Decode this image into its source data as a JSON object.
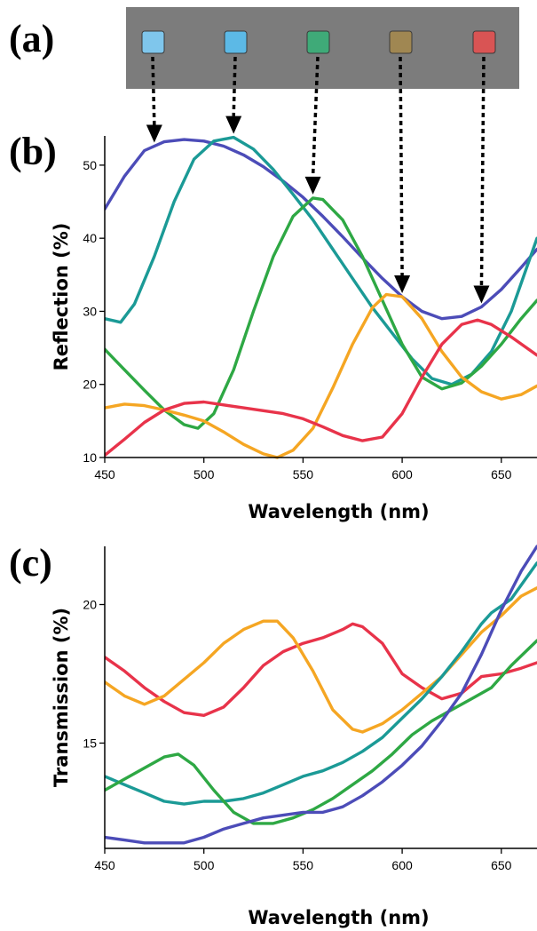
{
  "panel_labels": {
    "a": "(a)",
    "b": "(b)",
    "c": "(c)"
  },
  "photo": {
    "background": "#7c7c7c",
    "swatches": [
      {
        "color": "#7fc6ec",
        "arrow_to_wavelength": 475
      },
      {
        "color": "#5cb9e6",
        "arrow_to_wavelength": 515
      },
      {
        "color": "#3faa78",
        "arrow_to_wavelength": 555
      },
      {
        "color": "#a08752",
        "arrow_to_wavelength": 600
      },
      {
        "color": "#d95454",
        "arrow_to_wavelength": 640
      }
    ]
  },
  "chart_data": [
    {
      "id": "b",
      "type": "line",
      "xlabel": "Wavelength (nm)",
      "ylabel": "Reflection (%)",
      "xlim": [
        450,
        668
      ],
      "ylim": [
        10,
        54
      ],
      "xticks": [
        450,
        500,
        550,
        600,
        650
      ],
      "yticks": [
        10,
        20,
        30,
        40,
        50
      ],
      "series": [
        {
          "color": "#4c4cb8",
          "points": [
            [
              450,
              44
            ],
            [
              460,
              48.5
            ],
            [
              470,
              52
            ],
            [
              480,
              53.2
            ],
            [
              490,
              53.5
            ],
            [
              500,
              53.3
            ],
            [
              510,
              52.6
            ],
            [
              520,
              51.4
            ],
            [
              530,
              49.8
            ],
            [
              540,
              47.8
            ],
            [
              550,
              45.6
            ],
            [
              560,
              43
            ],
            [
              570,
              40.2
            ],
            [
              580,
              37.3
            ],
            [
              590,
              34.5
            ],
            [
              600,
              32
            ],
            [
              610,
              30
            ],
            [
              620,
              29
            ],
            [
              630,
              29.3
            ],
            [
              640,
              30.6
            ],
            [
              650,
              33
            ],
            [
              660,
              36
            ],
            [
              668,
              38.5
            ]
          ]
        },
        {
          "color": "#1b9a96",
          "points": [
            [
              450,
              29
            ],
            [
              458,
              28.5
            ],
            [
              465,
              31
            ],
            [
              475,
              37.5
            ],
            [
              485,
              45
            ],
            [
              495,
              50.8
            ],
            [
              505,
              53.3
            ],
            [
              515,
              53.8
            ],
            [
              525,
              52.2
            ],
            [
              535,
              49.4
            ],
            [
              545,
              46
            ],
            [
              555,
              42.5
            ],
            [
              565,
              38.5
            ],
            [
              575,
              34.5
            ],
            [
              585,
              30.5
            ],
            [
              595,
              27
            ],
            [
              605,
              23.5
            ],
            [
              615,
              20.8
            ],
            [
              625,
              20
            ],
            [
              635,
              21.4
            ],
            [
              645,
              24.5
            ],
            [
              655,
              30
            ],
            [
              668,
              40
            ]
          ]
        },
        {
          "color": "#2ea844",
          "points": [
            [
              450,
              24.8
            ],
            [
              460,
              22
            ],
            [
              470,
              19.2
            ],
            [
              480,
              16.5
            ],
            [
              490,
              14.5
            ],
            [
              497,
              14
            ],
            [
              505,
              16
            ],
            [
              515,
              22
            ],
            [
              525,
              30
            ],
            [
              535,
              37.5
            ],
            [
              545,
              43
            ],
            [
              555,
              45.5
            ],
            [
              560,
              45.3
            ],
            [
              570,
              42.5
            ],
            [
              580,
              37.5
            ],
            [
              590,
              31.5
            ],
            [
              600,
              25.5
            ],
            [
              610,
              21
            ],
            [
              620,
              19.4
            ],
            [
              630,
              20.2
            ],
            [
              640,
              22.5
            ],
            [
              650,
              25.5
            ],
            [
              660,
              29
            ],
            [
              668,
              31.5
            ]
          ]
        },
        {
          "color": "#f5a623",
          "points": [
            [
              450,
              16.8
            ],
            [
              460,
              17.3
            ],
            [
              470,
              17.1
            ],
            [
              480,
              16.5
            ],
            [
              490,
              15.8
            ],
            [
              500,
              15
            ],
            [
              510,
              13.5
            ],
            [
              520,
              11.8
            ],
            [
              530,
              10.5
            ],
            [
              537,
              10
            ],
            [
              545,
              11
            ],
            [
              555,
              14
            ],
            [
              565,
              19.5
            ],
            [
              575,
              25.5
            ],
            [
              585,
              30.5
            ],
            [
              592,
              32.3
            ],
            [
              600,
              32
            ],
            [
              610,
              29
            ],
            [
              620,
              24.5
            ],
            [
              630,
              21
            ],
            [
              640,
              19
            ],
            [
              650,
              18
            ],
            [
              660,
              18.6
            ],
            [
              668,
              19.8
            ]
          ]
        },
        {
          "color": "#e8334a",
          "points": [
            [
              450,
              10.3
            ],
            [
              460,
              12.5
            ],
            [
              470,
              14.8
            ],
            [
              480,
              16.5
            ],
            [
              490,
              17.4
            ],
            [
              500,
              17.6
            ],
            [
              510,
              17.2
            ],
            [
              520,
              16.8
            ],
            [
              530,
              16.4
            ],
            [
              540,
              16
            ],
            [
              550,
              15.3
            ],
            [
              560,
              14.2
            ],
            [
              570,
              13
            ],
            [
              580,
              12.3
            ],
            [
              590,
              12.8
            ],
            [
              600,
              16
            ],
            [
              610,
              21
            ],
            [
              620,
              25.5
            ],
            [
              630,
              28.2
            ],
            [
              638,
              28.8
            ],
            [
              645,
              28.2
            ],
            [
              655,
              26.5
            ],
            [
              668,
              24
            ]
          ]
        }
      ]
    },
    {
      "id": "c",
      "type": "line",
      "xlabel": "Wavelength (nm)",
      "ylabel": "Transmission (%)",
      "xlim": [
        450,
        668
      ],
      "ylim": [
        11.2,
        22.1
      ],
      "xticks": [
        450,
        500,
        550,
        600,
        650
      ],
      "yticks": [
        15,
        20
      ],
      "series": [
        {
          "color": "#e8334a",
          "points": [
            [
              450,
              18.1
            ],
            [
              460,
              17.6
            ],
            [
              470,
              17
            ],
            [
              480,
              16.5
            ],
            [
              490,
              16.1
            ],
            [
              500,
              16
            ],
            [
              510,
              16.3
            ],
            [
              520,
              17
            ],
            [
              530,
              17.8
            ],
            [
              540,
              18.3
            ],
            [
              550,
              18.6
            ],
            [
              560,
              18.8
            ],
            [
              570,
              19.1
            ],
            [
              575,
              19.3
            ],
            [
              580,
              19.2
            ],
            [
              590,
              18.6
            ],
            [
              600,
              17.5
            ],
            [
              610,
              17
            ],
            [
              620,
              16.6
            ],
            [
              630,
              16.8
            ],
            [
              640,
              17.4
            ],
            [
              650,
              17.5
            ],
            [
              660,
              17.7
            ],
            [
              668,
              17.9
            ]
          ]
        },
        {
          "color": "#f5a623",
          "points": [
            [
              450,
              17.2
            ],
            [
              460,
              16.7
            ],
            [
              470,
              16.4
            ],
            [
              480,
              16.7
            ],
            [
              490,
              17.3
            ],
            [
              500,
              17.9
            ],
            [
              510,
              18.6
            ],
            [
              520,
              19.1
            ],
            [
              530,
              19.4
            ],
            [
              537,
              19.4
            ],
            [
              545,
              18.8
            ],
            [
              555,
              17.6
            ],
            [
              565,
              16.2
            ],
            [
              575,
              15.5
            ],
            [
              580,
              15.4
            ],
            [
              590,
              15.7
            ],
            [
              600,
              16.2
            ],
            [
              610,
              16.8
            ],
            [
              620,
              17.4
            ],
            [
              630,
              18.2
            ],
            [
              640,
              19
            ],
            [
              650,
              19.6
            ],
            [
              660,
              20.3
            ],
            [
              668,
              20.6
            ]
          ]
        },
        {
          "color": "#1b9a96",
          "points": [
            [
              450,
              13.8
            ],
            [
              460,
              13.5
            ],
            [
              470,
              13.2
            ],
            [
              480,
              12.9
            ],
            [
              490,
              12.8
            ],
            [
              500,
              12.9
            ],
            [
              510,
              12.9
            ],
            [
              520,
              13
            ],
            [
              530,
              13.2
            ],
            [
              540,
              13.5
            ],
            [
              550,
              13.8
            ],
            [
              560,
              14
            ],
            [
              570,
              14.3
            ],
            [
              580,
              14.7
            ],
            [
              590,
              15.2
            ],
            [
              600,
              15.9
            ],
            [
              610,
              16.6
            ],
            [
              620,
              17.4
            ],
            [
              630,
              18.3
            ],
            [
              640,
              19.3
            ],
            [
              645,
              19.7
            ],
            [
              655,
              20.2
            ],
            [
              668,
              21.5
            ]
          ]
        },
        {
          "color": "#2ea844",
          "points": [
            [
              450,
              13.3
            ],
            [
              460,
              13.7
            ],
            [
              470,
              14.1
            ],
            [
              480,
              14.5
            ],
            [
              487,
              14.6
            ],
            [
              495,
              14.2
            ],
            [
              505,
              13.3
            ],
            [
              515,
              12.5
            ],
            [
              525,
              12.1
            ],
            [
              535,
              12.1
            ],
            [
              545,
              12.3
            ],
            [
              555,
              12.6
            ],
            [
              565,
              13
            ],
            [
              575,
              13.5
            ],
            [
              585,
              14
            ],
            [
              595,
              14.6
            ],
            [
              605,
              15.3
            ],
            [
              615,
              15.8
            ],
            [
              625,
              16.2
            ],
            [
              635,
              16.6
            ],
            [
              645,
              17
            ],
            [
              655,
              17.8
            ],
            [
              668,
              18.7
            ]
          ]
        },
        {
          "color": "#4c4cb8",
          "points": [
            [
              450,
              11.6
            ],
            [
              460,
              11.5
            ],
            [
              470,
              11.4
            ],
            [
              480,
              11.4
            ],
            [
              490,
              11.4
            ],
            [
              500,
              11.6
            ],
            [
              510,
              11.9
            ],
            [
              520,
              12.1
            ],
            [
              530,
              12.3
            ],
            [
              540,
              12.4
            ],
            [
              550,
              12.5
            ],
            [
              560,
              12.5
            ],
            [
              570,
              12.7
            ],
            [
              580,
              13.1
            ],
            [
              590,
              13.6
            ],
            [
              600,
              14.2
            ],
            [
              610,
              14.9
            ],
            [
              620,
              15.8
            ],
            [
              630,
              16.8
            ],
            [
              640,
              18.2
            ],
            [
              650,
              19.8
            ],
            [
              660,
              21.2
            ],
            [
              668,
              22.1
            ]
          ]
        }
      ]
    }
  ]
}
